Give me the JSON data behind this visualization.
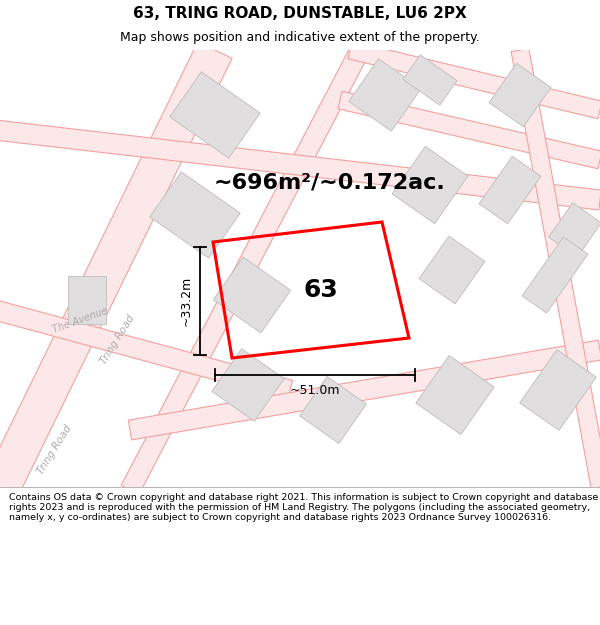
{
  "title_line1": "63, TRING ROAD, DUNSTABLE, LU6 2PX",
  "title_line2": "Map shows position and indicative extent of the property.",
  "footer_text": "Contains OS data © Crown copyright and database right 2021. This information is subject to Crown copyright and database rights 2023 and is reproduced with the permission of HM Land Registry. The polygons (including the associated geometry, namely x, y co-ordinates) are subject to Crown copyright and database rights 2023 Ordnance Survey 100026316.",
  "area_label": "~696m²/~0.172ac.",
  "number_label": "63",
  "width_label": "~51.0m",
  "height_label": "~33.2m",
  "map_bg": "#ffffff",
  "road_line_color": "#f4a0a0",
  "road_fill_color": "#fce8e8",
  "building_face_color": "#e0dede",
  "building_edge_color": "#c0bcbc",
  "red_polygon": "#ff0000",
  "black": "#000000",
  "road_label_tring": "Tring Road",
  "road_label_avenue": "The Avenue",
  "title_fontsize": 11,
  "subtitle_fontsize": 9,
  "footer_fontsize": 6.8,
  "area_fontsize": 16,
  "number_fontsize": 18,
  "dim_fontsize": 9,
  "road_label_color": "#b0aaaa"
}
